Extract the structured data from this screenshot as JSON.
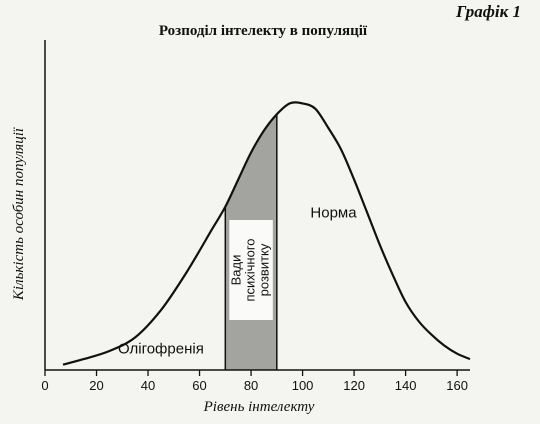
{
  "figure_label": "Графік 1",
  "chart_data": {
    "type": "area",
    "title": "Розподіл інтелекту в популяції",
    "xlabel": "Рівень інтелекту",
    "ylabel": "Кількість особин популяції",
    "xlim": [
      0,
      165
    ],
    "ylim": [
      0,
      1
    ],
    "xticks": [
      0,
      20,
      40,
      60,
      80,
      100,
      120,
      140,
      160
    ],
    "grid": false,
    "series": [
      {
        "x": [
          7,
          15,
          25,
          35,
          45,
          55,
          65,
          70,
          75,
          80,
          85,
          90,
          95,
          100,
          105,
          110,
          115,
          120,
          125,
          130,
          135,
          140,
          145,
          150,
          155,
          160,
          165
        ],
        "y": [
          0.02,
          0.04,
          0.07,
          0.12,
          0.22,
          0.36,
          0.52,
          0.6,
          0.7,
          0.8,
          0.88,
          0.94,
          0.98,
          0.98,
          0.96,
          0.89,
          0.81,
          0.7,
          0.58,
          0.46,
          0.35,
          0.25,
          0.18,
          0.13,
          0.09,
          0.06,
          0.04
        ]
      }
    ],
    "shaded_region": {
      "x_from": 70,
      "x_to": 90,
      "label": "Вади психічного розвитку"
    },
    "annotations": [
      {
        "text": "Норма",
        "x": 112,
        "y": 0.56
      },
      {
        "text": "Олігофренія",
        "x": 45,
        "y": 0.06
      }
    ]
  }
}
